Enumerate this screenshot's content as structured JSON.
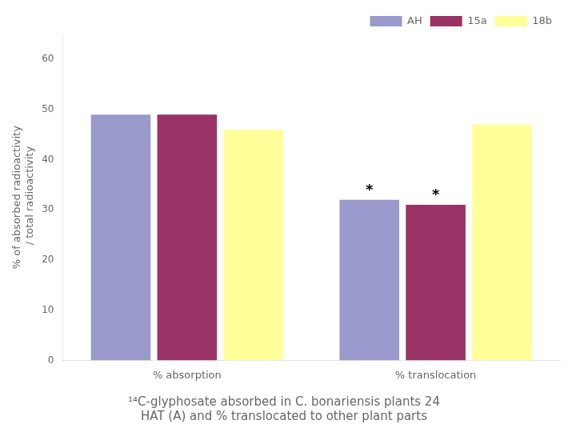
{
  "chart_data": {
    "type": "bar",
    "title": [
      "¹⁴C-glyphosate absorbed in C. bonariensis plants 24",
      "HAT (A) and % translocated to other plant parts"
    ],
    "categories": [
      "% absorption",
      "% translocation"
    ],
    "series": [
      {
        "name": "AH",
        "color": "#9999CC",
        "values": [
          49,
          32
        ]
      },
      {
        "name": "15a",
        "color": "#993366",
        "values": [
          49,
          31
        ]
      },
      {
        "name": "18b",
        "color": "#FFFF99",
        "values": [
          46,
          47
        ]
      }
    ],
    "ylabel": "% of absorbed radioactivity\n / total radioactivity",
    "ylim": [
      0,
      65
    ],
    "yticks": [
      0,
      10,
      20,
      30,
      40,
      50,
      60
    ],
    "grid": false,
    "legend": "upper right",
    "annotations": [
      {
        "text": "*",
        "category": "% translocation",
        "series": "AH"
      },
      {
        "text": "*",
        "category": "% translocation",
        "series": "15a"
      }
    ]
  }
}
